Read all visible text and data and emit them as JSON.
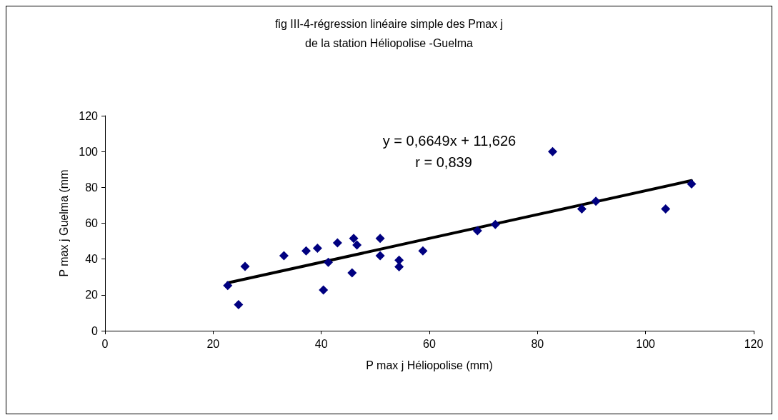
{
  "chart_data": {
    "type": "scatter",
    "title": "fig III-4-régression linéaire simple des Pmax j\nde la station Héliopolise -Guelma",
    "xlabel": "P max j Héliopolise (mm)",
    "ylabel": "P max j Guelma (mm",
    "annotations": [
      "y = 0,6649x + 11,626",
      "r = 0,839"
    ],
    "series": [
      {
        "color": "#000080",
        "marker": "diamond",
        "x": [
          22.7,
          24.7,
          25.9,
          33.1,
          37.2,
          39.3,
          40.4,
          41.3,
          43.0,
          46.0,
          45.7,
          46.6,
          50.9,
          50.9,
          54.4,
          54.4,
          58.8,
          68.9,
          72.2,
          82.8,
          88.2,
          90.8,
          103.7,
          108.5
        ],
        "values": [
          25.2,
          14.6,
          35.9,
          41.9,
          44.6,
          46.0,
          22.7,
          38.2,
          49.0,
          51.5,
          32.3,
          47.8,
          51.5,
          41.9,
          39.4,
          35.7,
          44.6,
          55.8,
          59.3,
          100,
          68.0,
          72.3,
          68.0,
          81.9
        ]
      },
      {
        "type": "line",
        "color": "#000000",
        "marker": "none",
        "line_style": "solid",
        "x": [
          22.7,
          108.5
        ],
        "values": [
          26.7,
          83.8
        ]
      }
    ],
    "xlim": [
      0,
      120
    ],
    "xticks": [
      0,
      20,
      40,
      60,
      80,
      100,
      120
    ],
    "ylim": [
      0,
      120
    ],
    "yticks": [
      0,
      20,
      40,
      60,
      80,
      100,
      120
    ],
    "grid": false
  }
}
